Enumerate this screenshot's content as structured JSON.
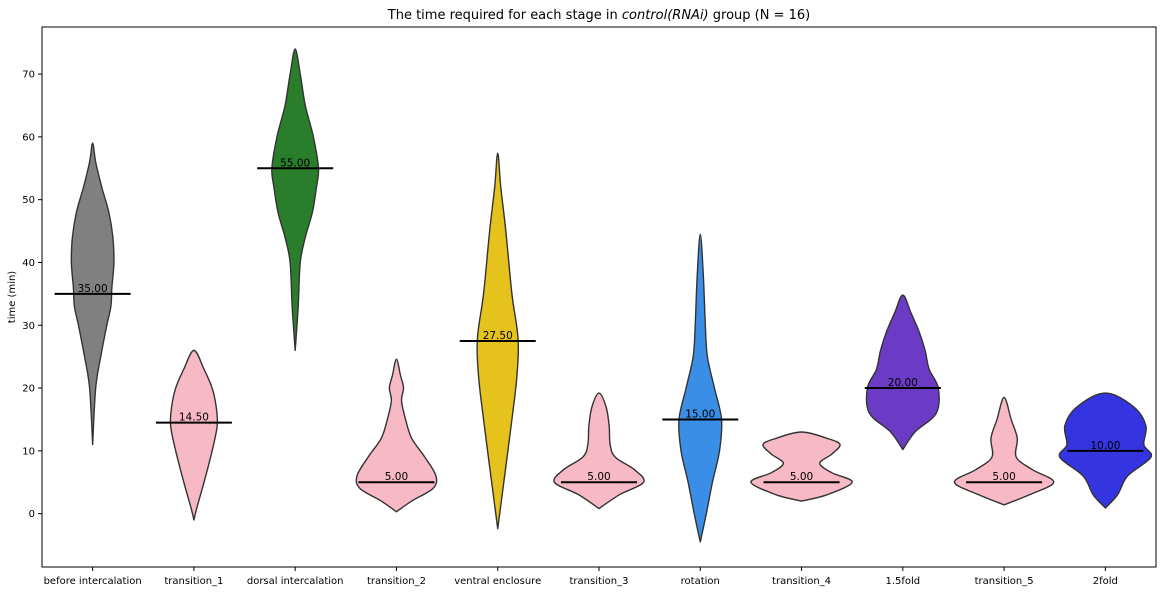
{
  "chart_data": {
    "type": "violin",
    "title": "The time required for each stage in control(RNAi) group (N = 16)",
    "title_parts": {
      "prefix": "The time required for each stage in ",
      "italic": "control(RNAi)",
      "suffix": " group (N = 16)"
    },
    "xlabel": "",
    "ylabel": "time (min)",
    "ylim": [
      -8.5,
      77.5
    ],
    "yticks": [
      0,
      10,
      20,
      30,
      40,
      50,
      60,
      70
    ],
    "grid": false,
    "categories": [
      "before intercalation",
      "transition_1",
      "dorsal intercalation",
      "transition_2",
      "ventral enclosure",
      "transition_3",
      "rotation",
      "transition_4",
      "1.5fold",
      "transition_5",
      "2fold"
    ],
    "medians": [
      35.0,
      14.5,
      55.0,
      5.0,
      27.5,
      5.0,
      15.0,
      5.0,
      20.0,
      5.0,
      10.0
    ],
    "median_labels": [
      "35.00",
      "14.50",
      "55.00",
      "5.00",
      "27.50",
      "5.00",
      "15.00",
      "5.00",
      "20.00",
      "5.00",
      "10.00"
    ],
    "colors": [
      "#808080",
      "#f7b9c6",
      "#2a7d2a",
      "#f7b9c6",
      "#e6c21c",
      "#f7b9c6",
      "#3b8ee6",
      "#f7b9c6",
      "#6c3bc5",
      "#f7b9c6",
      "#3434e0"
    ],
    "violins": [
      {
        "name": "before intercalation",
        "profile": [
          [
            11,
            0.0
          ],
          [
            20,
            0.03
          ],
          [
            25,
            0.08
          ],
          [
            30,
            0.14
          ],
          [
            33,
            0.18
          ],
          [
            36,
            0.19
          ],
          [
            40,
            0.21
          ],
          [
            44,
            0.2
          ],
          [
            48,
            0.16
          ],
          [
            52,
            0.09
          ],
          [
            56,
            0.03
          ],
          [
            59,
            0.0
          ]
        ]
      },
      {
        "name": "transition_1",
        "profile": [
          [
            -1,
            0.0
          ],
          [
            1,
            0.03
          ],
          [
            5,
            0.1
          ],
          [
            10,
            0.18
          ],
          [
            14,
            0.23
          ],
          [
            17,
            0.22
          ],
          [
            20,
            0.18
          ],
          [
            23,
            0.1
          ],
          [
            26,
            0.0
          ]
        ]
      },
      {
        "name": "dorsal intercalation",
        "profile": [
          [
            26,
            0.0
          ],
          [
            33,
            0.03
          ],
          [
            40,
            0.05
          ],
          [
            44,
            0.1
          ],
          [
            48,
            0.17
          ],
          [
            52,
            0.21
          ],
          [
            55,
            0.23
          ],
          [
            60,
            0.18
          ],
          [
            65,
            0.1
          ],
          [
            70,
            0.05
          ],
          [
            74,
            0.0
          ]
        ]
      },
      {
        "name": "transition_2",
        "profile": [
          [
            0.3,
            0.0
          ],
          [
            2,
            0.15
          ],
          [
            4,
            0.36
          ],
          [
            6,
            0.39
          ],
          [
            9,
            0.28
          ],
          [
            12,
            0.15
          ],
          [
            15,
            0.09
          ],
          [
            18,
            0.05
          ],
          [
            20,
            0.07
          ],
          [
            22,
            0.04
          ],
          [
            24.6,
            0.0
          ]
        ]
      },
      {
        "name": "ventral enclosure",
        "profile": [
          [
            -2.4,
            0.0
          ],
          [
            5,
            0.06
          ],
          [
            15,
            0.14
          ],
          [
            22,
            0.19
          ],
          [
            28,
            0.2
          ],
          [
            35,
            0.14
          ],
          [
            45,
            0.08
          ],
          [
            52,
            0.03
          ],
          [
            57.4,
            0.0
          ]
        ]
      },
      {
        "name": "transition_3",
        "profile": [
          [
            0.8,
            0.0
          ],
          [
            3,
            0.2
          ],
          [
            5,
            0.44
          ],
          [
            7,
            0.35
          ],
          [
            9,
            0.16
          ],
          [
            11,
            0.11
          ],
          [
            14,
            0.1
          ],
          [
            17,
            0.07
          ],
          [
            19.2,
            0.0
          ]
        ]
      },
      {
        "name": "rotation",
        "profile": [
          [
            -4.5,
            0.0
          ],
          [
            0,
            0.06
          ],
          [
            5,
            0.12
          ],
          [
            10,
            0.19
          ],
          [
            15,
            0.21
          ],
          [
            20,
            0.14
          ],
          [
            25,
            0.07
          ],
          [
            30,
            0.05
          ],
          [
            38,
            0.03
          ],
          [
            44.5,
            0.0
          ]
        ]
      },
      {
        "name": "transition_4",
        "profile": [
          [
            2,
            0.0
          ],
          [
            3,
            0.25
          ],
          [
            5,
            0.5
          ],
          [
            6.5,
            0.3
          ],
          [
            8,
            0.18
          ],
          [
            9.5,
            0.3
          ],
          [
            11,
            0.38
          ],
          [
            12,
            0.25
          ],
          [
            13,
            0.0
          ]
        ]
      },
      {
        "name": "1.5fold",
        "profile": [
          [
            10.2,
            0.0
          ],
          [
            13,
            0.12
          ],
          [
            16,
            0.33
          ],
          [
            20,
            0.35
          ],
          [
            23,
            0.26
          ],
          [
            26,
            0.22
          ],
          [
            29,
            0.16
          ],
          [
            32,
            0.08
          ],
          [
            34.8,
            0.0
          ]
        ]
      },
      {
        "name": "transition_5",
        "profile": [
          [
            1.4,
            0.0
          ],
          [
            3,
            0.25
          ],
          [
            5,
            0.49
          ],
          [
            7,
            0.28
          ],
          [
            9,
            0.12
          ],
          [
            12,
            0.13
          ],
          [
            15,
            0.07
          ],
          [
            18.5,
            0.0
          ]
        ]
      },
      {
        "name": "2fold",
        "profile": [
          [
            0.9,
            0.0
          ],
          [
            3,
            0.12
          ],
          [
            6,
            0.22
          ],
          [
            9,
            0.45
          ],
          [
            11,
            0.38
          ],
          [
            14,
            0.4
          ],
          [
            17,
            0.28
          ],
          [
            19.2,
            0.0
          ]
        ]
      }
    ]
  }
}
